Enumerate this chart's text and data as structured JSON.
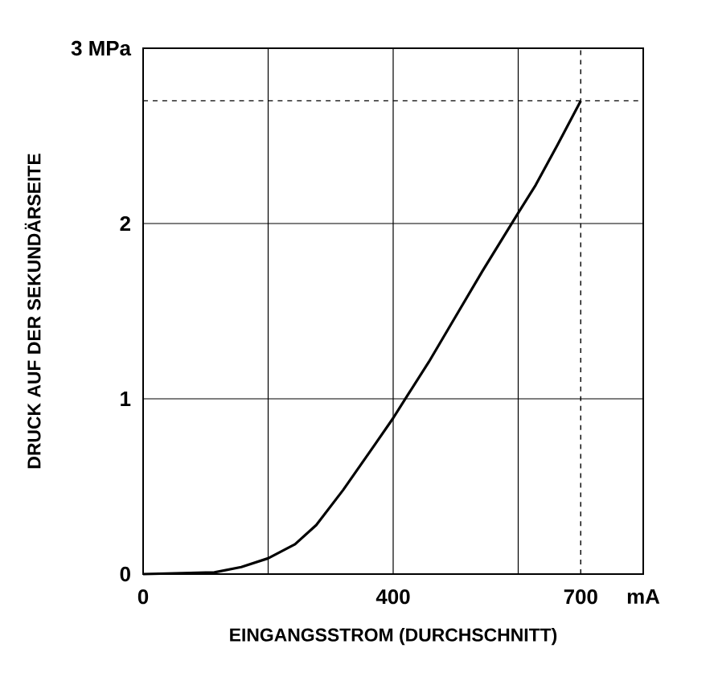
{
  "chart_data": {
    "type": "line",
    "xlabel": "EINGANGSSTROM (DURCHSCHNITT)",
    "ylabel": "DRUCK AUF DER SEKUNDÄRSEITE",
    "x": [
      0,
      114,
      157,
      200,
      243,
      277,
      320,
      371,
      400,
      423,
      457,
      500,
      543,
      600,
      628,
      663,
      700
    ],
    "values": [
      0,
      0.01,
      0.04,
      0.09,
      0.17,
      0.28,
      0.48,
      0.74,
      0.89,
      1.02,
      1.21,
      1.47,
      1.73,
      2.06,
      2.22,
      2.45,
      2.7
    ],
    "color": "#000000",
    "xlim": [
      0,
      800
    ],
    "ylim": [
      0,
      3
    ],
    "xticks": [
      0,
      {
        "value": 200,
        "label": null
      },
      400,
      {
        "value": 600,
        "label": null
      },
      {
        "value": 800,
        "label": "mA"
      }
    ],
    "yticks": [
      0,
      1,
      2,
      {
        "value": 3,
        "label": "3 MPa"
      }
    ],
    "grid": true,
    "marker": "none",
    "line_style": "solid",
    "ref_lines": [
      {
        "axis": "x",
        "value": 700,
        "label": "700",
        "line_style": "dashed"
      },
      {
        "axis": "y",
        "value": 2.7,
        "label": null,
        "line_style": "dashed"
      }
    ]
  }
}
